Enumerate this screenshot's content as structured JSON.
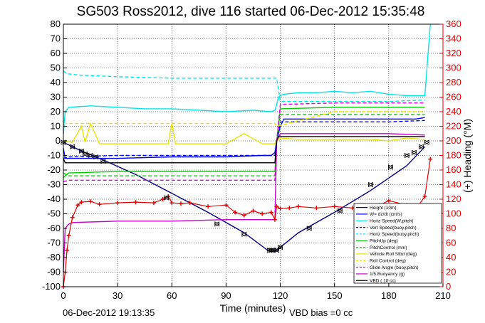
{
  "chart_data": {
    "type": "line",
    "title": "SG503 Ross2012, dive 116 started 06-Dec-2012 15:35:48",
    "xlabel": "Time (minutes)",
    "ylabel": "",
    "y2label": "(+) Heading (°M)",
    "xlim": [
      0,
      210
    ],
    "ylim": [
      -100,
      80
    ],
    "y2lim": [
      0,
      360
    ],
    "xticks": [
      0,
      30,
      60,
      90,
      120,
      150,
      180,
      210
    ],
    "yticks": [
      -100,
      -90,
      -80,
      -70,
      -60,
      -50,
      -40,
      -30,
      -20,
      -10,
      0,
      10,
      20,
      30,
      40,
      50,
      60,
      70,
      80
    ],
    "y2ticks": [
      0,
      20,
      40,
      60,
      80,
      100,
      120,
      140,
      160,
      180,
      200,
      220,
      240,
      260,
      280,
      300,
      320,
      340,
      360
    ],
    "grid": true,
    "legend_position": "bottom-right",
    "series": [
      {
        "name": "Height (10m)",
        "color": "#000080",
        "style": "solid",
        "x": [
          0,
          5,
          10,
          20,
          40,
          60,
          80,
          100,
          113,
          115,
          118,
          121,
          130,
          150,
          170,
          190,
          200
        ],
        "y": [
          -1,
          -4,
          -7,
          -12,
          -23,
          -36,
          -49,
          -63,
          -75,
          -76,
          -75,
          -72,
          -63,
          -49,
          -34,
          -17,
          -4
        ]
      },
      {
        "name": "W= dz/dt (cm/s)",
        "color": "#0000ff",
        "style": "solid",
        "x": [
          0,
          1,
          3,
          10,
          30,
          60,
          90,
          110,
          115,
          117,
          118,
          120,
          122,
          140,
          160,
          180,
          195,
          200
        ],
        "y": [
          -5,
          -12,
          -12,
          -12,
          -12,
          -11,
          -11,
          -10,
          -10,
          -8,
          0,
          10,
          15,
          15,
          15,
          15,
          15,
          16
        ]
      },
      {
        "name": "Horiz Speed(W,pitch)",
        "color": "#00e6e6",
        "style": "solid",
        "x": [
          0,
          1,
          3,
          15,
          30,
          45,
          60,
          75,
          90,
          105,
          115,
          117,
          118,
          119,
          120,
          122,
          130,
          140,
          150,
          160,
          170,
          180,
          190,
          200,
          203
        ],
        "y": [
          5,
          20,
          23,
          24,
          23,
          22,
          22,
          21,
          20,
          21,
          20,
          21,
          25,
          30,
          31,
          32,
          33,
          33,
          34,
          33,
          34,
          32,
          31,
          31,
          80
        ]
      },
      {
        "name": "Vert Speed(buoy,pitch)",
        "color": "#0000ff",
        "style": "dashed",
        "x": [
          0,
          3,
          30,
          60,
          90,
          117,
          118,
          120,
          150,
          180,
          200
        ],
        "y": [
          -12,
          -11,
          -10,
          -10,
          -10,
          -10,
          0,
          13,
          13,
          13,
          14
        ]
      },
      {
        "name": "Horiz Speed(buoy,pitch)",
        "color": "#00e6e6",
        "style": "dashed",
        "x": [
          0,
          2,
          10,
          30,
          60,
          90,
          117,
          118,
          120,
          150,
          180,
          200
        ],
        "y": [
          48,
          46,
          45,
          44,
          43,
          43,
          43,
          43,
          27,
          27,
          27,
          28
        ]
      },
      {
        "name": "PitchUp (deg)",
        "color": "#00cc00",
        "style": "solid",
        "x": [
          0,
          3,
          30,
          60,
          90,
          117,
          118,
          120,
          150,
          180,
          200
        ],
        "y": [
          -25,
          -22,
          -21,
          -21,
          -21,
          -21,
          0,
          22,
          23,
          23,
          23
        ]
      },
      {
        "name": "PitchControl (mm)",
        "color": "#00cc00",
        "style": "dashed",
        "x": [
          0,
          3,
          30,
          60,
          90,
          117,
          118,
          120,
          150,
          180,
          200
        ],
        "y": [
          -22,
          -24,
          -24,
          -24,
          -24,
          -24,
          0,
          18,
          18,
          18,
          18
        ]
      },
      {
        "name": "Vehicle Roll Stbd (deg)",
        "color": "#e6e600",
        "style": "solid",
        "x": [
          0,
          5,
          10,
          12,
          15,
          20,
          30,
          40,
          50,
          58,
          60,
          62,
          70,
          80,
          90,
          100,
          110,
          117,
          118,
          120,
          130,
          140,
          150,
          160,
          170,
          180,
          190,
          200
        ],
        "y": [
          0,
          -1,
          10,
          -1,
          12,
          -2,
          -2,
          -2,
          -2,
          -2,
          12,
          -2,
          -2,
          -2,
          -2,
          5,
          -2,
          -2,
          0,
          2,
          1,
          1,
          1,
          1,
          1,
          0,
          2,
          1
        ]
      },
      {
        "name": "Roll Control (deg)",
        "color": "#e6e600",
        "style": "dashed",
        "x": [
          0,
          30,
          60,
          90,
          117,
          118,
          150,
          180,
          200
        ],
        "y": [
          12,
          12,
          12,
          12,
          12,
          10,
          20,
          20,
          20
        ]
      },
      {
        "name": "Glide Angle (buoy,pitch)",
        "color": "#e600e6",
        "style": "dashed",
        "x": [
          0,
          3,
          30,
          60,
          90,
          117,
          118,
          120,
          150,
          180,
          200
        ],
        "y": [
          -28,
          -27,
          -27,
          -27,
          -27,
          -27,
          0,
          25,
          26,
          26,
          26
        ]
      },
      {
        "name": "1/5 Buoyancy (g)",
        "color": "#cc00cc",
        "style": "solid",
        "x": [
          0,
          1,
          3,
          5,
          30,
          60,
          90,
          116,
          117,
          118,
          120,
          150,
          180,
          200
        ],
        "y": [
          -90,
          -60,
          -57,
          -56,
          -55,
          -55,
          -54,
          -54,
          -54,
          0,
          5,
          5,
          5,
          4
        ]
      },
      {
        "name": "VBD ( 10 cc)",
        "color": "#000000",
        "style": "solid",
        "x": [
          0,
          1,
          2,
          30,
          60,
          90,
          117,
          118,
          119,
          150,
          180,
          200
        ],
        "y": [
          -12,
          -15,
          -15,
          -15,
          -15,
          -15,
          -15,
          0,
          3,
          3,
          3,
          3
        ]
      },
      {
        "name": "Heading",
        "color": "#e00000",
        "style": "plus",
        "axis": "right",
        "x": [
          0,
          1,
          2,
          3,
          5,
          8,
          10,
          15,
          20,
          30,
          40,
          50,
          55,
          58,
          60,
          65,
          70,
          80,
          90,
          95,
          100,
          105,
          110,
          115,
          117,
          118,
          120,
          125,
          130,
          140,
          150,
          160,
          170,
          175,
          180,
          190,
          195,
          200,
          203
        ],
        "y": [
          0,
          20,
          50,
          70,
          95,
          112,
          116,
          117,
          113,
          115,
          116,
          115,
          120,
          124,
          115,
          114,
          115,
          110,
          112,
          102,
          98,
          104,
          100,
          102,
          92,
          110,
          107,
          108,
          110,
          108,
          110,
          108,
          106,
          112,
          118,
          112,
          106,
          124,
          175
        ]
      }
    ],
    "markers": {
      "name": "Height markers",
      "x": [
        0,
        5,
        10,
        12,
        15,
        18,
        22,
        57,
        85,
        100,
        114,
        115,
        116,
        118,
        120,
        136,
        153,
        170,
        181,
        190,
        194,
        198,
        201
      ],
      "y": [
        -1,
        -4,
        -7,
        -9,
        -10,
        -11,
        -14,
        -39,
        -57,
        -64,
        -75,
        -75,
        -75,
        -75,
        -73,
        -60,
        -48,
        -30,
        -18,
        -10,
        -8,
        -4,
        -1
      ]
    }
  },
  "footer": {
    "timestamp": "06-Dec-2012 19:13:35",
    "vbd_bias": "VBD bias =0 cc"
  },
  "colors": {
    "right_axis": "#e00000"
  }
}
